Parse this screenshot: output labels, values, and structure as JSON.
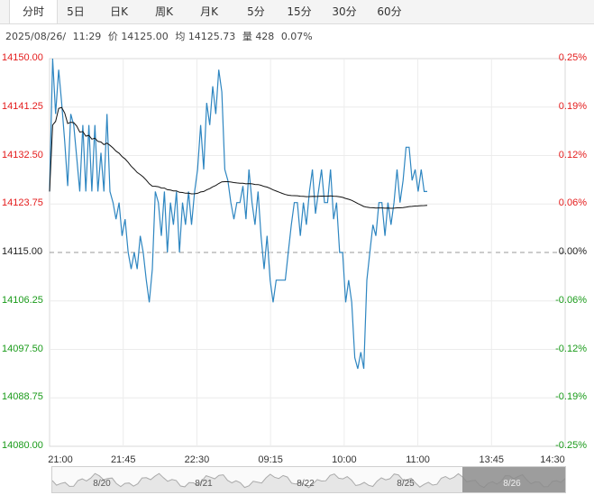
{
  "tabs": [
    "分时",
    "5日",
    "日K",
    "周K",
    "月K",
    "5分",
    "15分",
    "30分",
    "60分"
  ],
  "info": {
    "date": "2025/08/26/",
    "time": "11:29",
    "price_label": "价",
    "price": "14125.00",
    "avg_label": "均",
    "avg": "14125.73",
    "vol_label": "量",
    "vol": "428",
    "change": "0.07%"
  },
  "colors": {
    "up": "#e41c1c",
    "down": "#1a9b1a",
    "flat": "#222222",
    "price_line": "#2e86c1",
    "avg_line": "#111111"
  },
  "chart_data": {
    "type": "line",
    "base": 14115.0,
    "ylim": [
      14080.0,
      14150.0
    ],
    "y_ticks_left": [
      "14150.00",
      "14141.25",
      "14132.50",
      "14123.75",
      "14115.00",
      "14106.25",
      "14097.50",
      "14088.75",
      "14080.00"
    ],
    "y_ticks_right": [
      "0.25%",
      "0.19%",
      "0.12%",
      "0.06%",
      "0.00%",
      "-0.06%",
      "-0.12%",
      "-0.19%",
      "-0.25%"
    ],
    "x_ticks": [
      "21:00",
      "21:45",
      "22:30",
      "09:15",
      "10:00",
      "11:00",
      "13:45",
      "14:30"
    ],
    "price": [
      14126,
      14150,
      14140,
      14148,
      14142,
      14135,
      14127,
      14140,
      14138,
      14132,
      14126,
      14138,
      14126,
      14138,
      14126,
      14138,
      14126,
      14133,
      14126,
      14140,
      14126,
      14124,
      14121,
      14124,
      14118,
      14121,
      14115,
      14112,
      14115,
      14112,
      14118,
      14115,
      14110,
      14106,
      14112,
      14126,
      14124,
      14118,
      14126,
      14115,
      14124,
      14120,
      14126,
      14115,
      14124,
      14120,
      14126,
      14120,
      14126,
      14130,
      14138,
      14130,
      14142,
      14138,
      14145,
      14140,
      14148,
      14144,
      14130,
      14128,
      14124,
      14121,
      14124,
      14124,
      14127,
      14121,
      14130,
      14124,
      14120,
      14126,
      14118,
      14112,
      14118,
      14110,
      14106,
      14110,
      14110,
      14110,
      14110,
      14115,
      14120,
      14124,
      14124,
      14118,
      14124,
      14120,
      14126,
      14130,
      14122,
      14126,
      14130,
      14124,
      14124,
      14130,
      14121,
      14124,
      14115,
      14115,
      14106,
      14110,
      14106,
      14096,
      14094,
      14097,
      14094,
      14110,
      14115,
      14120,
      14118,
      14124,
      14124,
      14118,
      14124,
      14120,
      14124,
      14130,
      14124,
      14128,
      14134,
      14134,
      14128,
      14130,
      14126,
      14130,
      14126,
      14126
    ]
  },
  "navigator": {
    "labels": [
      "8/20",
      "8/21",
      "8/22",
      "8/25",
      "8/26"
    ]
  }
}
